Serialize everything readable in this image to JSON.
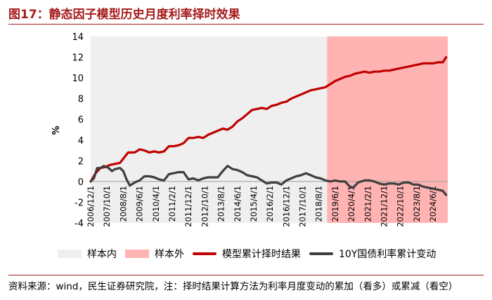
{
  "title": "图17：静态因子模型历史月度利率择时效果",
  "source": "资料来源：wind，民生证券研究院，注：择时结果计算方法为利率月度变动的累加（看多）或累减（看空）",
  "colors": {
    "title": "#a61b1b",
    "in_sample": "#efefef",
    "out_sample": "#ffb3b3",
    "model": "#c00000",
    "bond": "#3f3f3f"
  },
  "chart_data": {
    "type": "line",
    "title": "",
    "ylabel": "%",
    "xlabel": "",
    "ylim": [
      -4,
      14
    ],
    "yticks": [
      -4,
      -2,
      0,
      2,
      4,
      6,
      8,
      10,
      12,
      14
    ],
    "x_start": "2006/12/1",
    "x_end": "2025/3/1",
    "xticks": [
      "2006/12/1",
      "2007/10/1",
      "2008/8/1",
      "2009/6/1",
      "2010/4/1",
      "2011/2/1",
      "2011/12/1",
      "2012/10/1",
      "2013/8/1",
      "2014/6/1",
      "2015/4/1",
      "2016/2/1",
      "2016/12/1",
      "2017/10/1",
      "2018/8/1",
      "2019/6/1",
      "2020/4/1",
      "2021/2/1",
      "2021/12/1",
      "2022/10/1",
      "2023/8/1",
      "2024/6/1"
    ],
    "shaded_regions": [
      {
        "name": "样本内",
        "from": "2006/12/1",
        "to": "2019/1/1"
      },
      {
        "name": "样本外",
        "from": "2019/1/1",
        "to": "2025/3/1"
      }
    ],
    "series": [
      {
        "name": "模型累计择时结果",
        "points": [
          [
            "2006/12/1",
            0
          ],
          [
            "2007/3/1",
            0.8
          ],
          [
            "2007/6/1",
            1.3
          ],
          [
            "2007/9/1",
            1.4
          ],
          [
            "2007/12/1",
            1.6
          ],
          [
            "2008/3/1",
            1.7
          ],
          [
            "2008/6/1",
            1.8
          ],
          [
            "2008/9/1",
            2.4
          ],
          [
            "2008/11/1",
            2.8
          ],
          [
            "2009/3/1",
            2.8
          ],
          [
            "2009/6/1",
            3.1
          ],
          [
            "2009/9/1",
            3.0
          ],
          [
            "2009/12/1",
            2.8
          ],
          [
            "2010/3/1",
            2.9
          ],
          [
            "2010/6/1",
            2.8
          ],
          [
            "2010/9/1",
            2.9
          ],
          [
            "2010/12/1",
            3.4
          ],
          [
            "2011/3/1",
            3.4
          ],
          [
            "2011/6/1",
            3.5
          ],
          [
            "2011/9/1",
            3.7
          ],
          [
            "2011/12/1",
            4.2
          ],
          [
            "2012/3/1",
            4.2
          ],
          [
            "2012/6/1",
            4.3
          ],
          [
            "2012/9/1",
            4.2
          ],
          [
            "2012/12/1",
            4.5
          ],
          [
            "2013/3/1",
            4.7
          ],
          [
            "2013/6/1",
            4.9
          ],
          [
            "2013/9/1",
            5.1
          ],
          [
            "2013/12/1",
            5.0
          ],
          [
            "2014/3/1",
            5.3
          ],
          [
            "2014/6/1",
            5.8
          ],
          [
            "2014/9/1",
            6.1
          ],
          [
            "2014/12/1",
            6.5
          ],
          [
            "2015/3/1",
            6.9
          ],
          [
            "2015/6/1",
            7.0
          ],
          [
            "2015/9/1",
            7.1
          ],
          [
            "2015/12/1",
            7.0
          ],
          [
            "2016/3/1",
            7.3
          ],
          [
            "2016/6/1",
            7.4
          ],
          [
            "2016/9/1",
            7.6
          ],
          [
            "2016/12/1",
            7.7
          ],
          [
            "2017/3/1",
            8.0
          ],
          [
            "2017/6/1",
            8.2
          ],
          [
            "2017/9/1",
            8.4
          ],
          [
            "2017/12/1",
            8.6
          ],
          [
            "2018/3/1",
            8.8
          ],
          [
            "2018/6/1",
            8.9
          ],
          [
            "2018/9/1",
            9.0
          ],
          [
            "2018/12/1",
            9.1
          ],
          [
            "2019/3/1",
            9.4
          ],
          [
            "2019/6/1",
            9.7
          ],
          [
            "2019/9/1",
            9.9
          ],
          [
            "2019/12/1",
            10.1
          ],
          [
            "2020/3/1",
            10.2
          ],
          [
            "2020/6/1",
            10.4
          ],
          [
            "2020/9/1",
            10.5
          ],
          [
            "2020/12/1",
            10.6
          ],
          [
            "2021/3/1",
            10.5
          ],
          [
            "2021/6/1",
            10.6
          ],
          [
            "2021/9/1",
            10.6
          ],
          [
            "2021/12/1",
            10.7
          ],
          [
            "2022/3/1",
            10.7
          ],
          [
            "2022/6/1",
            10.8
          ],
          [
            "2022/9/1",
            10.9
          ],
          [
            "2022/12/1",
            11.0
          ],
          [
            "2023/3/1",
            11.1
          ],
          [
            "2023/6/1",
            11.2
          ],
          [
            "2023/9/1",
            11.3
          ],
          [
            "2023/12/1",
            11.4
          ],
          [
            "2024/3/1",
            11.4
          ],
          [
            "2024/6/1",
            11.4
          ],
          [
            "2024/9/1",
            11.5
          ],
          [
            "2024/12/1",
            11.5
          ],
          [
            "2025/2/1",
            12.0
          ]
        ]
      },
      {
        "name": "10Y国债利率累计变动",
        "points": [
          [
            "2006/12/1",
            0
          ],
          [
            "2007/2/1",
            0.3
          ],
          [
            "2007/4/1",
            1.3
          ],
          [
            "2007/6/1",
            1.3
          ],
          [
            "2007/8/1",
            1.5
          ],
          [
            "2007/11/1",
            1.3
          ],
          [
            "2008/1/1",
            1.0
          ],
          [
            "2008/3/1",
            1.2
          ],
          [
            "2008/6/1",
            1.3
          ],
          [
            "2008/8/1",
            1.0
          ],
          [
            "2008/10/1",
            0.2
          ],
          [
            "2008/12/1",
            -0.4
          ],
          [
            "2009/3/1",
            -0.1
          ],
          [
            "2009/6/1",
            0.1
          ],
          [
            "2009/9/1",
            0.5
          ],
          [
            "2009/12/1",
            0.5
          ],
          [
            "2010/3/1",
            0.4
          ],
          [
            "2010/6/1",
            0.2
          ],
          [
            "2010/9/1",
            0.1
          ],
          [
            "2010/12/1",
            0.7
          ],
          [
            "2011/3/1",
            0.8
          ],
          [
            "2011/6/1",
            0.9
          ],
          [
            "2011/9/1",
            0.9
          ],
          [
            "2011/12/1",
            0.2
          ],
          [
            "2012/3/1",
            0.3
          ],
          [
            "2012/6/1",
            0.1
          ],
          [
            "2012/9/1",
            0.3
          ],
          [
            "2012/12/1",
            0.4
          ],
          [
            "2013/3/1",
            0.4
          ],
          [
            "2013/6/1",
            0.4
          ],
          [
            "2013/9/1",
            1.0
          ],
          [
            "2013/12/1",
            1.5
          ],
          [
            "2014/3/1",
            1.2
          ],
          [
            "2014/6/1",
            1.1
          ],
          [
            "2014/9/1",
            0.9
          ],
          [
            "2014/12/1",
            0.6
          ],
          [
            "2015/3/1",
            0.5
          ],
          [
            "2015/6/1",
            0.4
          ],
          [
            "2015/9/1",
            0.1
          ],
          [
            "2015/12/1",
            -0.2
          ],
          [
            "2016/3/1",
            -0.1
          ],
          [
            "2016/6/1",
            -0.1
          ],
          [
            "2016/9/1",
            -0.3
          ],
          [
            "2016/12/1",
            0.1
          ],
          [
            "2017/3/1",
            0.3
          ],
          [
            "2017/6/1",
            0.5
          ],
          [
            "2017/9/1",
            0.6
          ],
          [
            "2017/12/1",
            0.8
          ],
          [
            "2018/3/1",
            0.6
          ],
          [
            "2018/6/1",
            0.4
          ],
          [
            "2018/9/1",
            0.3
          ],
          [
            "2018/12/1",
            0.1
          ],
          [
            "2019/3/1",
            0.0
          ],
          [
            "2019/6/1",
            0.1
          ],
          [
            "2019/9/1",
            0.0
          ],
          [
            "2019/12/1",
            0.0
          ],
          [
            "2020/3/1",
            -0.5
          ],
          [
            "2020/5/1",
            -0.6
          ],
          [
            "2020/8/1",
            -0.1
          ],
          [
            "2020/12/1",
            0.1
          ],
          [
            "2021/3/1",
            0.1
          ],
          [
            "2021/6/1",
            0.0
          ],
          [
            "2021/9/1",
            -0.2
          ],
          [
            "2021/12/1",
            -0.3
          ],
          [
            "2022/3/1",
            -0.2
          ],
          [
            "2022/6/1",
            -0.2
          ],
          [
            "2022/9/1",
            -0.3
          ],
          [
            "2022/12/1",
            -0.1
          ],
          [
            "2023/3/1",
            -0.1
          ],
          [
            "2023/6/1",
            -0.3
          ],
          [
            "2023/9/1",
            -0.3
          ],
          [
            "2023/12/1",
            -0.5
          ],
          [
            "2024/3/1",
            -0.6
          ],
          [
            "2024/6/1",
            -0.7
          ],
          [
            "2024/9/1",
            -0.8
          ],
          [
            "2024/12/1",
            -0.9
          ],
          [
            "2025/2/1",
            -1.3
          ]
        ]
      }
    ],
    "legend": [
      {
        "label": "样本内",
        "kind": "area"
      },
      {
        "label": "样本外",
        "kind": "area"
      },
      {
        "label": "模型累计择时结果",
        "kind": "line"
      },
      {
        "label": "10Y国债利率累计变动",
        "kind": "line"
      }
    ]
  }
}
